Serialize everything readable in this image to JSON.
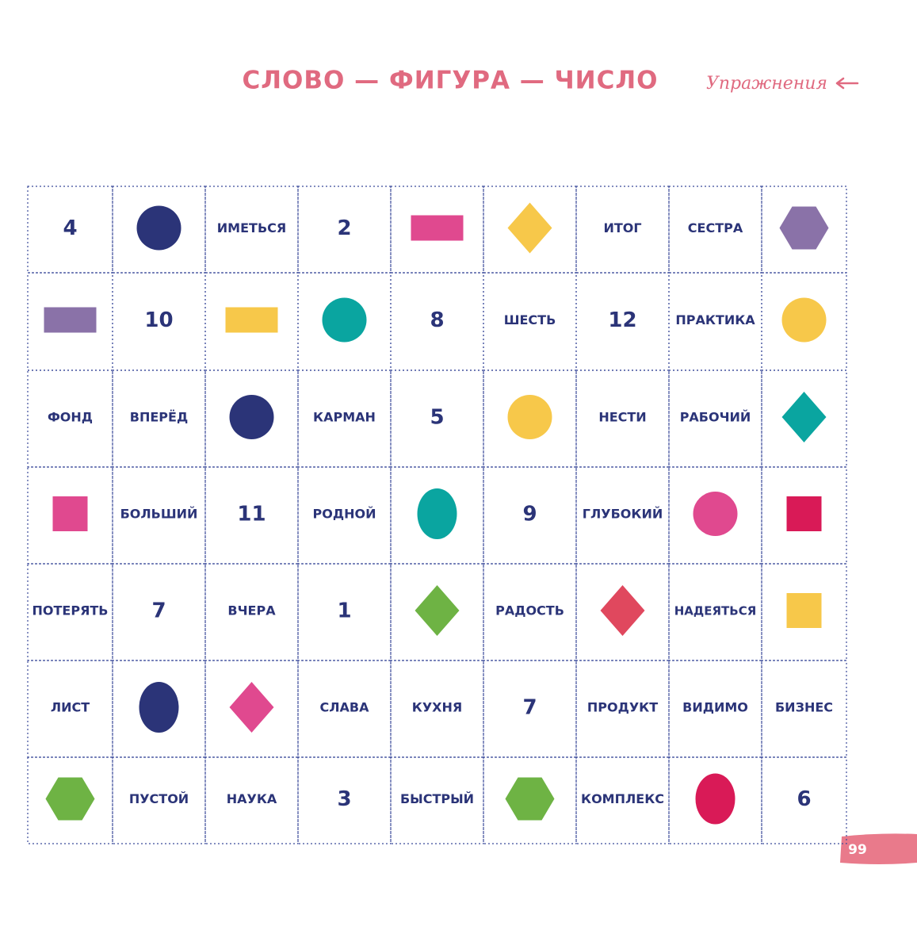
{
  "header": {
    "title": "СЛОВО — ФИГУРА — ЧИСЛО",
    "section": "Упражнения"
  },
  "grid": {
    "rows": [
      [
        4,
        null,
        "ИМЕТЬСЯ",
        2,
        null,
        null,
        "ИТОГ",
        "СЕСТРА",
        null
      ],
      [
        null,
        10,
        null,
        null,
        8,
        "ШЕСТЬ",
        12,
        "ПРАКТИКА",
        null
      ],
      [
        "ФОНД",
        "ВПЕРЁД",
        null,
        "КАРМАН",
        5,
        null,
        "НЕСТИ",
        "РАБОЧИЙ",
        null
      ],
      [
        null,
        "БОЛЬШИЙ",
        11,
        "РОДНОЙ",
        null,
        9,
        "ГЛУБОКИЙ",
        null,
        null
      ],
      [
        "ПОТЕРЯТЬ",
        7,
        "ВЧЕРА",
        1,
        null,
        "РАДОСТЬ",
        null,
        "НАДЕЯТЬСЯ",
        null
      ],
      [
        "ЛИСТ",
        null,
        null,
        "СЛАВА",
        "КУХНЯ",
        7,
        "ПРОДУКТ",
        "ВИДИМО",
        "БИЗНЕС"
      ],
      [
        null,
        "ПУСТОЙ",
        "НАУКА",
        3,
        "БЫСТРЫЙ",
        null,
        "КОМПЛЕКС",
        null,
        6
      ]
    ]
  },
  "footer": {
    "page": 99
  }
}
